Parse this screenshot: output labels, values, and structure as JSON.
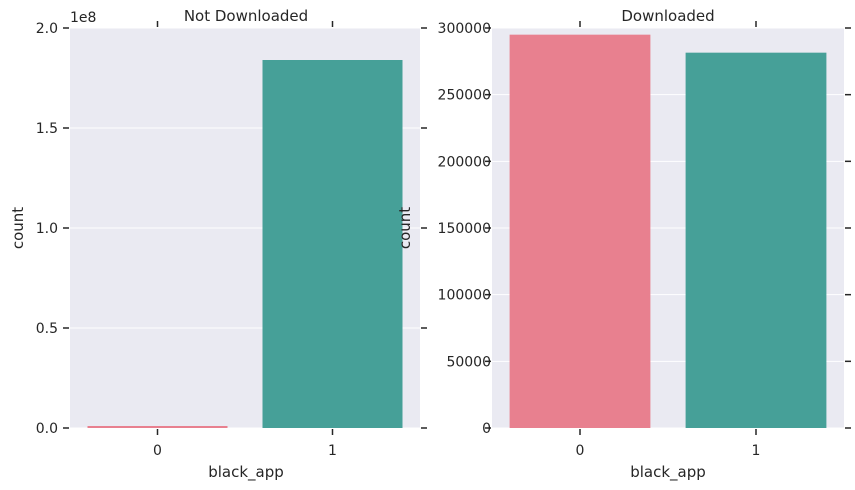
{
  "chart_data": [
    {
      "type": "bar",
      "title": "Not Downloaded",
      "xlabel": "black_app",
      "ylabel": "count",
      "categories": [
        "0",
        "1"
      ],
      "values": [
        1000000,
        184000000
      ],
      "ylim": [
        0,
        200000000
      ],
      "yticks": [
        0,
        50000000,
        100000000,
        150000000,
        200000000
      ],
      "ytick_labels": [
        "0.0",
        "0.5",
        "1.0",
        "1.5",
        "2.0"
      ],
      "offset_label": "1e8",
      "colors": [
        "#e8808f",
        "#46a098"
      ],
      "grid": true
    },
    {
      "type": "bar",
      "title": "Downloaded",
      "xlabel": "black_app",
      "ylabel": "count",
      "categories": [
        "0",
        "1"
      ],
      "values": [
        295000,
        281500
      ],
      "ylim": [
        0,
        300000
      ],
      "yticks": [
        0,
        50000,
        100000,
        150000,
        200000,
        250000,
        300000
      ],
      "ytick_labels": [
        "0",
        "50000",
        "100000",
        "150000",
        "200000",
        "250000",
        "300000"
      ],
      "offset_label": "",
      "colors": [
        "#e8808f",
        "#46a098"
      ],
      "grid": true
    }
  ],
  "style": {
    "plot_background": "#eaeaf2",
    "grid_color": "#ffffff",
    "text_color": "#262626"
  }
}
